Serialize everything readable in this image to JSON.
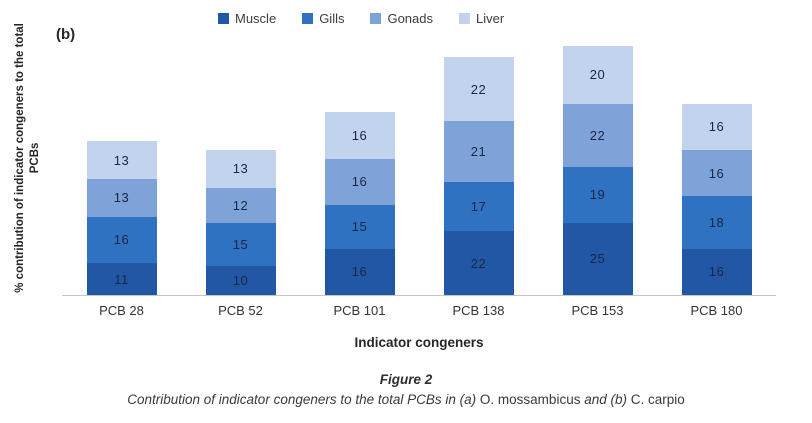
{
  "figure_label": "(b)",
  "axes": {
    "ylabel_lines": [
      "% contribution of indicator congeners to the total",
      "PCBs"
    ]
  },
  "chart_data": {
    "type": "bar",
    "subtype": "stacked",
    "categories": [
      "PCB 28",
      "PCB 52",
      "PCB 101",
      "PCB 138",
      "PCB 153",
      "PCB 180"
    ],
    "series": [
      {
        "name": "Muscle",
        "color": "#2257a5",
        "values": [
          11,
          10,
          16,
          22,
          25,
          16
        ]
      },
      {
        "name": "Gills",
        "color": "#2e72c1",
        "values": [
          16,
          15,
          15,
          17,
          19,
          18
        ]
      },
      {
        "name": "Gonads",
        "color": "#7ea3d9",
        "values": [
          13,
          12,
          16,
          21,
          22,
          16
        ]
      },
      {
        "name": "Liver",
        "color": "#c2d3ed",
        "values": [
          13,
          13,
          16,
          22,
          20,
          16
        ]
      }
    ],
    "stack_totals": [
      53,
      50,
      63,
      82,
      86,
      66
    ],
    "xlabel": "Indicator congeners",
    "ylabel": "% contribution of indicator congeners to the total PCBs",
    "legend_position": "top",
    "data_labels": true,
    "grid": false,
    "axis_line_color": "#c6c6c6"
  },
  "caption": {
    "title": "Figure 2",
    "parts": [
      {
        "text": "Contribution of indicator congeners to the total PCBs in (a) ",
        "style": "italic"
      },
      {
        "text": "O. mossambicus",
        "style": "roman"
      },
      {
        "text": " and (b) ",
        "style": "italic"
      },
      {
        "text": "C. carpio",
        "style": "roman"
      }
    ]
  }
}
